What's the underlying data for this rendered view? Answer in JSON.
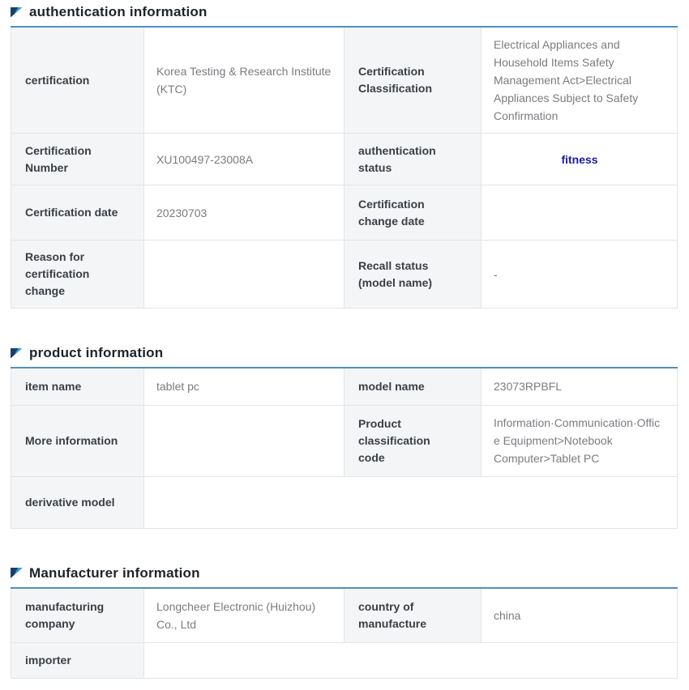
{
  "colors": {
    "accent_table_top_border": "#4f8fc0",
    "label_cell_bg": "#f4f5f6",
    "cell_border": "#e2e4e6",
    "label_text": "#3a3f45",
    "value_text": "#797c80",
    "section_title_text": "#1f2328",
    "status_text": "#1a1aad",
    "flag_icon_dark": "#1c3e66",
    "flag_icon_light": "#2e9ce4"
  },
  "sections": [
    {
      "title": "authentication information",
      "rows": [
        {
          "label1": "certification",
          "value1": "Korea Testing & Research Institute (KTC)",
          "label2": "Certification Classification",
          "value2": "Electrical Appliances and Household Items Safety Management Act>Electrical Appliances Subject to Safety Confirmation"
        },
        {
          "label1": "Certification Number",
          "value1": "XU100497-23008A",
          "label2": "authentication status",
          "value2": "fitness"
        },
        {
          "label1": "Certification date",
          "value1": "20230703",
          "label2": "Certification change date",
          "value2": ""
        },
        {
          "label1": "Reason for certification change",
          "value1": "",
          "label2": "Recall status (model name)",
          "value2": "-"
        }
      ]
    },
    {
      "title": "product information",
      "rows": [
        {
          "label1": "item name",
          "value1": "tablet pc",
          "label2": "model name",
          "value2": "23073RPBFL"
        },
        {
          "label1": "More information",
          "value1": "",
          "label2": "Product classification code",
          "value2": "Information·Communication·Office Equipment>Notebook Computer>Tablet PC"
        },
        {
          "label1": "derivative model",
          "value1": ""
        }
      ]
    },
    {
      "title": "Manufacturer information",
      "rows": [
        {
          "label1": "manufacturing company",
          "value1": "Longcheer Electronic (Huizhou) Co., Ltd",
          "label2": "country of manufacture",
          "value2": "china"
        },
        {
          "label1": "importer",
          "value1": ""
        }
      ]
    }
  ]
}
